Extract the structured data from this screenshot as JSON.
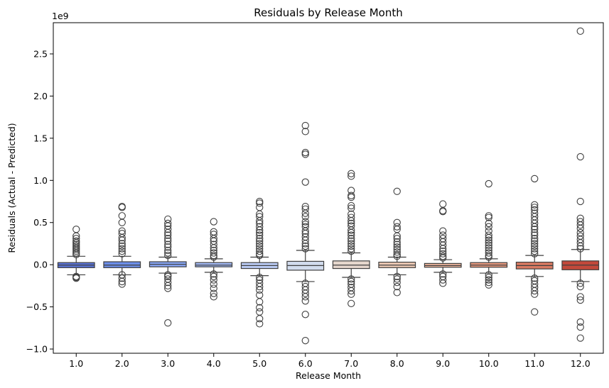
{
  "chart_data": {
    "type": "box",
    "title": "Residuals by Release Month",
    "xlabel": "Release Month",
    "ylabel": "Residuals (Actual - Predicted)",
    "y_scale_label": "1e9",
    "ylim": [
      -1.05,
      2.87
    ],
    "yticks": [
      -1.0,
      -0.5,
      0.0,
      0.5,
      1.0,
      1.5,
      2.0,
      2.5
    ],
    "ytick_labels": [
      "−1.0",
      "−0.5",
      "0.0",
      "0.5",
      "1.0",
      "1.5",
      "2.0",
      "2.5"
    ],
    "grid": false,
    "categories": [
      "1.0",
      "2.0",
      "3.0",
      "4.0",
      "5.0",
      "6.0",
      "7.0",
      "8.0",
      "9.0",
      "10.0",
      "11.0",
      "12.0"
    ],
    "boxes": [
      {
        "q1": -0.035,
        "median": -0.005,
        "q3": 0.025,
        "whisker_low": -0.12,
        "whisker_high": 0.1,
        "color": "#5b74d6",
        "fliers": [
          0.42,
          0.34,
          0.31,
          0.28,
          0.26,
          0.24,
          0.22,
          0.2,
          0.18,
          0.16,
          0.14,
          0.12,
          -0.14,
          -0.16,
          -0.15
        ]
      },
      {
        "q1": -0.035,
        "median": -0.005,
        "q3": 0.035,
        "whisker_low": -0.12,
        "whisker_high": 0.1,
        "color": "#6d8ee8",
        "fliers": [
          0.69,
          0.68,
          0.58,
          0.5,
          0.4,
          0.37,
          0.32,
          0.29,
          0.25,
          0.22,
          0.19,
          0.16,
          0.13,
          -0.12,
          -0.16,
          -0.2,
          -0.23
        ]
      },
      {
        "q1": -0.025,
        "median": 0.005,
        "q3": 0.035,
        "whisker_low": -0.1,
        "whisker_high": 0.09,
        "color": "#88a6f5",
        "fliers": [
          0.54,
          0.49,
          0.46,
          0.42,
          0.38,
          0.35,
          0.31,
          0.28,
          0.24,
          0.21,
          0.17,
          0.14,
          0.11,
          -0.12,
          -0.14,
          -0.17,
          -0.21,
          -0.25,
          -0.28,
          -0.69
        ]
      },
      {
        "q1": -0.025,
        "median": -0.005,
        "q3": 0.025,
        "whisker_low": -0.09,
        "whisker_high": 0.07,
        "color": "#a4bcf9",
        "fliers": [
          0.51,
          0.39,
          0.36,
          0.31,
          0.28,
          0.24,
          0.2,
          0.17,
          0.14,
          0.11,
          0.09,
          -0.11,
          -0.14,
          -0.18,
          -0.23,
          -0.28,
          -0.34,
          -0.38
        ]
      },
      {
        "q1": -0.045,
        "median": -0.01,
        "q3": 0.025,
        "whisker_low": -0.13,
        "whisker_high": 0.09,
        "color": "#bccdf6",
        "fliers": [
          0.75,
          0.73,
          0.68,
          0.6,
          0.57,
          0.52,
          0.49,
          0.45,
          0.41,
          0.38,
          0.35,
          0.31,
          0.28,
          0.25,
          0.22,
          0.19,
          0.16,
          0.13,
          0.11,
          -0.15,
          -0.18,
          -0.22,
          -0.26,
          -0.3,
          -0.36,
          -0.44,
          -0.51,
          -0.56,
          -0.64,
          -0.7
        ]
      },
      {
        "q1": -0.065,
        "median": -0.01,
        "q3": 0.04,
        "whisker_low": -0.2,
        "whisker_high": 0.17,
        "color": "#d2dcee",
        "fliers": [
          1.65,
          1.58,
          1.33,
          1.31,
          0.98,
          0.69,
          0.66,
          0.61,
          0.57,
          0.51,
          0.48,
          0.45,
          0.4,
          0.37,
          0.33,
          0.29,
          0.25,
          0.22,
          0.19,
          -0.22,
          -0.26,
          -0.3,
          -0.34,
          -0.38,
          -0.43,
          -0.59,
          -0.9
        ]
      },
      {
        "q1": -0.045,
        "median": -0.005,
        "q3": 0.045,
        "whisker_low": -0.15,
        "whisker_high": 0.14,
        "color": "#e6d7cd",
        "fliers": [
          1.08,
          1.05,
          0.88,
          0.82,
          0.8,
          0.7,
          0.67,
          0.6,
          0.56,
          0.52,
          0.49,
          0.46,
          0.41,
          0.38,
          0.35,
          0.31,
          0.28,
          0.25,
          0.22,
          0.19,
          0.16,
          -0.17,
          -0.2,
          -0.23,
          -0.27,
          -0.31,
          -0.35,
          -0.46
        ]
      },
      {
        "q1": -0.035,
        "median": -0.005,
        "q3": 0.03,
        "whisker_low": -0.12,
        "whisker_high": 0.09,
        "color": "#efcbb6",
        "fliers": [
          0.87,
          0.5,
          0.45,
          0.42,
          0.34,
          0.31,
          0.27,
          0.24,
          0.21,
          0.18,
          0.15,
          0.12,
          0.1,
          -0.14,
          -0.17,
          -0.21,
          -0.26,
          -0.33
        ]
      },
      {
        "q1": -0.03,
        "median": -0.01,
        "q3": 0.015,
        "whisker_low": -0.09,
        "whisker_high": 0.06,
        "color": "#f0b79e",
        "fliers": [
          0.72,
          0.64,
          0.63,
          0.4,
          0.35,
          0.31,
          0.27,
          0.23,
          0.19,
          0.16,
          0.13,
          0.1,
          0.08,
          -0.11,
          -0.14,
          -0.18,
          -0.22
        ]
      },
      {
        "q1": -0.03,
        "median": -0.005,
        "q3": 0.025,
        "whisker_low": -0.1,
        "whisker_high": 0.07,
        "color": "#e89b80",
        "fliers": [
          0.96,
          0.58,
          0.56,
          0.49,
          0.45,
          0.4,
          0.35,
          0.32,
          0.29,
          0.26,
          0.23,
          0.2,
          0.17,
          0.14,
          0.11,
          0.09,
          -0.12,
          -0.15,
          -0.18,
          -0.21,
          -0.24
        ]
      },
      {
        "q1": -0.05,
        "median": -0.01,
        "q3": 0.03,
        "whisker_low": -0.14,
        "whisker_high": 0.11,
        "color": "#d97a62",
        "fliers": [
          1.02,
          0.71,
          0.68,
          0.65,
          0.61,
          0.57,
          0.53,
          0.49,
          0.45,
          0.42,
          0.38,
          0.35,
          0.31,
          0.28,
          0.25,
          0.22,
          0.19,
          0.16,
          0.13,
          -0.16,
          -0.19,
          -0.23,
          -0.27,
          -0.31,
          -0.35,
          -0.56
        ]
      },
      {
        "q1": -0.06,
        "median": -0.005,
        "q3": 0.045,
        "whisker_low": -0.2,
        "whisker_high": 0.18,
        "color": "#c2493b",
        "fliers": [
          2.77,
          1.28,
          0.75,
          0.55,
          0.51,
          0.47,
          0.43,
          0.38,
          0.34,
          0.3,
          0.26,
          0.22,
          0.19,
          -0.22,
          -0.26,
          -0.38,
          -0.42,
          -0.68,
          -0.74,
          -0.87
        ]
      }
    ]
  }
}
